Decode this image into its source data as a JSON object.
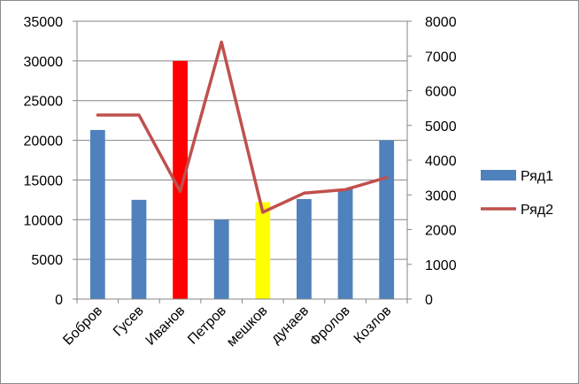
{
  "chart_data": {
    "type": "bar",
    "categories": [
      "Бобров",
      "Гусев",
      "Иванов",
      "Петров",
      "мешков",
      "дунаев",
      "Фролов",
      "Козлов"
    ],
    "series": [
      {
        "name": "Ряд1",
        "type": "bar",
        "axis": "left",
        "values": [
          21300,
          12500,
          30000,
          10000,
          12200,
          12600,
          13900,
          20000
        ],
        "color": "#4f81bd",
        "point_colors": [
          "#4f81bd",
          "#4f81bd",
          "#ff0000",
          "#4f81bd",
          "#ffff00",
          "#4f81bd",
          "#4f81bd",
          "#4f81bd"
        ]
      },
      {
        "name": "Ряд2",
        "type": "line",
        "axis": "right",
        "values": [
          5300,
          5300,
          3100,
          7400,
          2500,
          3050,
          3150,
          3500
        ],
        "color": "#c0504d"
      }
    ],
    "y_left": {
      "min": 0,
      "max": 35000,
      "step": 5000,
      "ticks": [
        "0",
        "5000",
        "10000",
        "15000",
        "20000",
        "25000",
        "30000",
        "35000"
      ]
    },
    "y_right": {
      "min": 0,
      "max": 8000,
      "step": 1000,
      "ticks": [
        "0",
        "1000",
        "2000",
        "3000",
        "4000",
        "5000",
        "6000",
        "7000",
        "8000"
      ]
    },
    "grid": true,
    "legend_position": "right"
  }
}
